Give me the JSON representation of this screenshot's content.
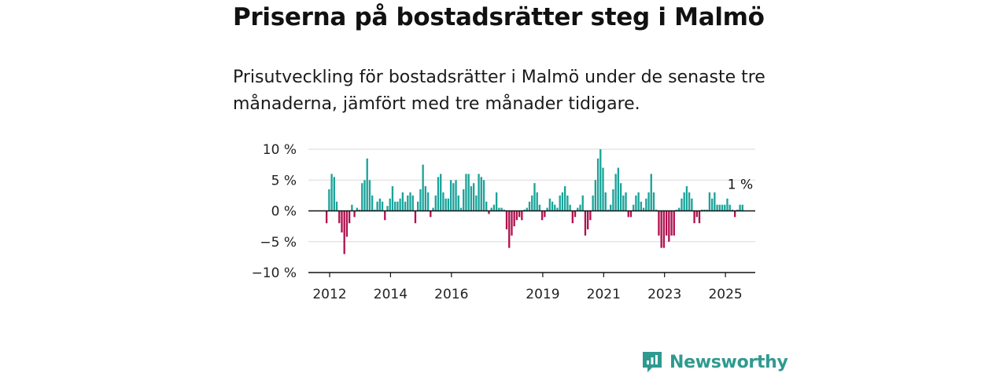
{
  "header": {
    "title": "Priserna på bostadsrätter steg i Malmö",
    "subtitle": "Prisutveckling för bostadsrätter i Malmö under de senaste tre månaderna, jämfört med tre månader tidigare."
  },
  "brand": {
    "name": "Newsworthy",
    "icon": "newsworthy-logo-icon"
  },
  "colors": {
    "positive": "#1aa39a",
    "negative": "#b0114f",
    "grid": "#d9d9d9",
    "axis": "#111111",
    "brand": "#2f9a8f"
  },
  "chart_data": {
    "type": "bar",
    "title": "",
    "xlabel": "",
    "ylabel": "",
    "ylim": [
      -10,
      10
    ],
    "yticks": [
      10,
      5,
      0,
      -5,
      -10
    ],
    "ytick_labels": [
      "10 %",
      "5 %",
      "0 %",
      "−5 %",
      "−10 %"
    ],
    "xtick_labels": [
      "2012",
      "2014",
      "2016",
      "2019",
      "2021",
      "2023",
      "2025"
    ],
    "xtick_positions": [
      2012,
      2014,
      2016,
      2019,
      2021,
      2023,
      2025
    ],
    "x_start": 2011.9,
    "month_step": 0.0833,
    "grid": true,
    "annotation": {
      "text": "1 %",
      "x": 2025.1,
      "y": 1
    },
    "series": [
      {
        "values": [
          -2,
          3.5,
          6,
          5.5,
          1.5,
          -2,
          -3.5,
          -7,
          -4.2,
          -2,
          1,
          -1,
          0.5,
          0.2,
          4.5,
          5,
          8.5,
          5,
          2.5,
          0.2,
          1.5,
          2,
          1.5,
          -1.5,
          0.8,
          2,
          4,
          1.5,
          1.5,
          2,
          3,
          1.5,
          2.5,
          3,
          2.5,
          -2,
          1.5,
          3.5,
          7.5,
          4,
          3,
          -1,
          0.5,
          2.5,
          5.5,
          6,
          3,
          2,
          2,
          5,
          4.5,
          5,
          2.5,
          0.5,
          3.5,
          6,
          6,
          4,
          4.5,
          2.5,
          6,
          5.5,
          5,
          1.5,
          -0.5,
          0.5,
          1,
          3,
          0.5,
          0.5,
          0.2,
          -3,
          -6,
          -4,
          -2.5,
          -1.5,
          -1,
          -1.5,
          0.2,
          0.5,
          1.5,
          2.5,
          4.5,
          3,
          1,
          -1.5,
          -1,
          0.5,
          2,
          1.5,
          1,
          0.5,
          2.5,
          3,
          4,
          2.5,
          1,
          -2,
          -1,
          0.5,
          1,
          2.5,
          -4,
          -3,
          -1.5,
          2.5,
          5,
          8.5,
          10,
          7,
          3,
          0.2,
          1,
          3.5,
          6,
          7,
          4.5,
          2.5,
          3,
          -1,
          -1,
          1,
          2.5,
          3,
          1.5,
          0.5,
          2,
          3,
          6,
          3,
          0.2,
          -4,
          -6,
          -6,
          -4,
          -5,
          -4,
          -4,
          0.2,
          0.5,
          2,
          3,
          4,
          3,
          2,
          -2,
          -1,
          -2,
          0.2,
          0.2,
          0.2,
          3,
          2,
          3,
          1,
          1,
          1,
          1,
          2,
          1,
          0.2,
          -1,
          0.2,
          1,
          1
        ]
      }
    ]
  }
}
